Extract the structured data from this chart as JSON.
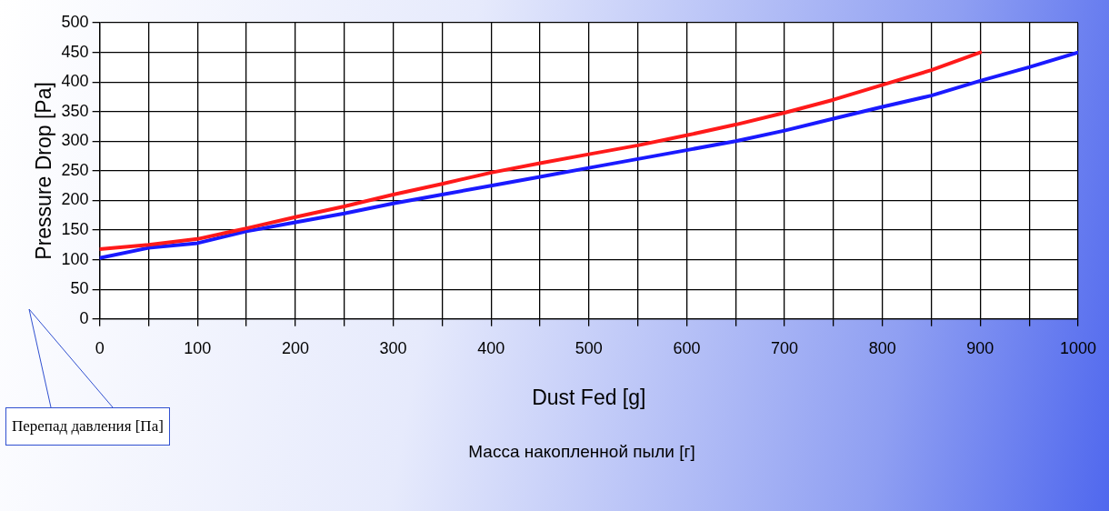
{
  "chart_data": {
    "type": "line",
    "xlabel": "Dust Fed [g]",
    "ylabel": "Pressure Drop [Pa]",
    "annotations": [
      "Перепад давления [Па]",
      "Масса накопленной пыли [г]"
    ],
    "series": [
      {
        "color": "#ff1a1a",
        "x": [
          0,
          50,
          100,
          150,
          200,
          250,
          300,
          350,
          400,
          450,
          500,
          550,
          600,
          650,
          700,
          750,
          800,
          850,
          900
        ],
        "values": [
          118,
          125,
          135,
          153,
          172,
          190,
          210,
          228,
          247,
          263,
          278,
          293,
          310,
          328,
          348,
          370,
          395,
          420,
          450
        ]
      },
      {
        "color": "#1a1aff",
        "x": [
          0,
          50,
          100,
          150,
          200,
          250,
          300,
          350,
          400,
          450,
          500,
          550,
          600,
          650,
          700,
          750,
          800,
          850,
          900,
          950,
          1000
        ],
        "values": [
          103,
          120,
          128,
          148,
          163,
          178,
          195,
          210,
          225,
          240,
          255,
          270,
          285,
          300,
          318,
          338,
          358,
          377,
          402,
          425,
          450
        ]
      }
    ],
    "xlim": [
      0,
      1000
    ],
    "xticks": [
      0,
      {
        "value": 50,
        "label": null
      },
      100,
      {
        "value": 150,
        "label": null
      },
      200,
      {
        "value": 250,
        "label": null
      },
      300,
      {
        "value": 350,
        "label": null
      },
      400,
      {
        "value": 450,
        "label": null
      },
      500,
      {
        "value": 550,
        "label": null
      },
      600,
      {
        "value": 650,
        "label": null
      },
      700,
      {
        "value": 750,
        "label": null
      },
      800,
      {
        "value": 850,
        "label": null
      },
      900,
      {
        "value": 950,
        "label": null
      },
      1000
    ],
    "ylim": [
      0,
      500
    ],
    "yticks": [
      0,
      50,
      100,
      150,
      200,
      250,
      300,
      350,
      400,
      450,
      500
    ],
    "grid": true,
    "marker": "none",
    "line_style": "solid"
  }
}
